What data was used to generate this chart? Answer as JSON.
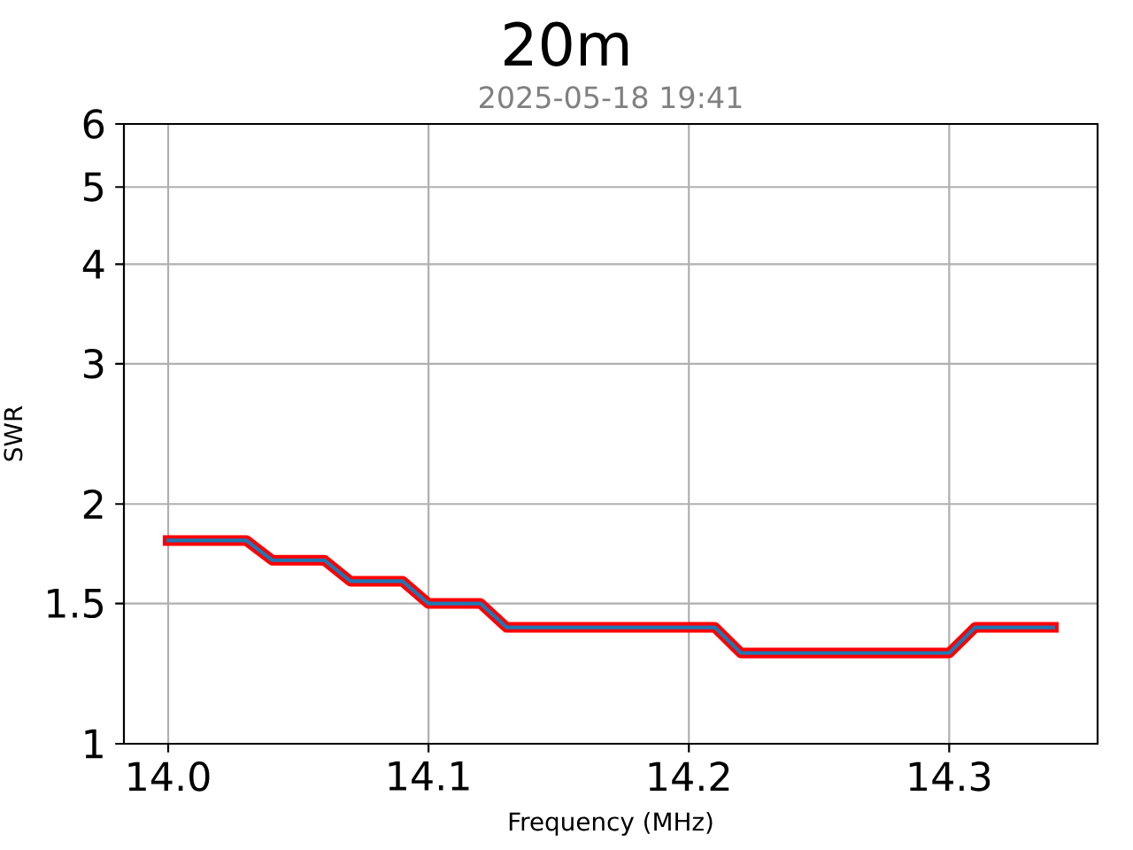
{
  "chart_data": {
    "type": "line",
    "title": "20m",
    "subtitle": "2025-05-18 19:41",
    "xlabel": "Frequency (MHz)",
    "ylabel": "SWR",
    "x": [
      14.0,
      14.01,
      14.02,
      14.03,
      14.04,
      14.05,
      14.06,
      14.07,
      14.08,
      14.09,
      14.1,
      14.11,
      14.12,
      14.13,
      14.14,
      14.15,
      14.16,
      14.17,
      14.18,
      14.19,
      14.2,
      14.21,
      14.22,
      14.23,
      14.24,
      14.25,
      14.26,
      14.27,
      14.28,
      14.29,
      14.3,
      14.31,
      14.32,
      14.33,
      14.34
    ],
    "series": [
      {
        "color": "#ff0000",
        "values": [
          1.8,
          1.8,
          1.8,
          1.8,
          1.7,
          1.7,
          1.7,
          1.6,
          1.6,
          1.6,
          1.5,
          1.5,
          1.5,
          1.4,
          1.4,
          1.4,
          1.4,
          1.4,
          1.4,
          1.4,
          1.4,
          1.4,
          1.3,
          1.3,
          1.3,
          1.3,
          1.3,
          1.3,
          1.3,
          1.3,
          1.3,
          1.4,
          1.4,
          1.4,
          1.4
        ]
      },
      {
        "color": "#1f77b4",
        "values": [
          1.8,
          1.8,
          1.8,
          1.8,
          1.7,
          1.7,
          1.7,
          1.6,
          1.6,
          1.6,
          1.5,
          1.5,
          1.5,
          1.4,
          1.4,
          1.4,
          1.4,
          1.4,
          1.4,
          1.4,
          1.4,
          1.4,
          1.3,
          1.3,
          1.3,
          1.3,
          1.3,
          1.3,
          1.3,
          1.3,
          1.3,
          1.4,
          1.4,
          1.4,
          1.4
        ]
      }
    ],
    "xlim": [
      13.983,
      14.357
    ],
    "ylim": [
      1,
      6
    ],
    "xticks": [
      {
        "value": 14.0,
        "label": "14.0"
      },
      {
        "value": 14.1,
        "label": "14.1"
      },
      {
        "value": 14.2,
        "label": "14.2"
      },
      {
        "value": 14.3,
        "label": "14.3"
      }
    ],
    "yticks": [
      1,
      1.5,
      2,
      3,
      4,
      5,
      6
    ],
    "log": true,
    "grid": true,
    "line_style": "solid"
  }
}
